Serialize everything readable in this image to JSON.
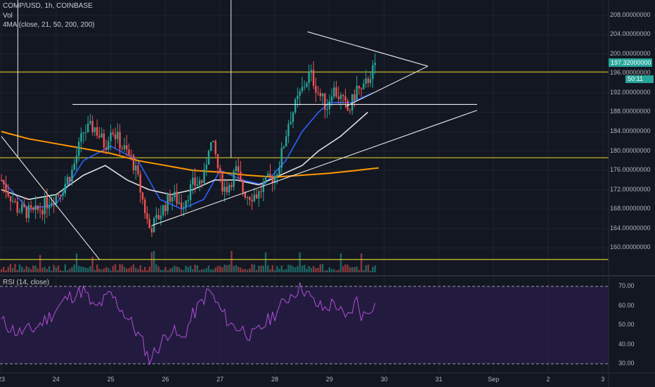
{
  "header": {
    "symbol_line": "COMP/USD, 1h, COINBASE",
    "vol_label": "Vol",
    "ma_label": "4MA (close, 21, 50, 200, 200)",
    "rsi_label": "RSI (14, close)"
  },
  "chart_data": {
    "type": "candlestick",
    "symbol": "COMP/USD",
    "interval": "1h",
    "exchange": "COINBASE",
    "price_axis": {
      "ticks": [
        "208.00000000",
        "204.00000000",
        "200.00000000",
        "196.00000000",
        "192.00000000",
        "188.00000000",
        "184.00000000",
        "180.00000000",
        "176.00000000",
        "172.00000000",
        "168.00000000",
        "164.00000000",
        "160.00000000"
      ],
      "ylim": [
        158,
        210
      ]
    },
    "last_price": "197.32000000",
    "countdown": "50:11",
    "x_axis": {
      "ticks": [
        "23",
        "24",
        "25",
        "26",
        "27",
        "28",
        "29",
        "30",
        "31",
        "Sep",
        "2",
        "3"
      ]
    },
    "rsi_axis": {
      "ticks": [
        "70.00",
        "60.00",
        "50.00",
        "40.00",
        "30.00"
      ],
      "ylim": [
        26,
        74
      ]
    },
    "close_path": [
      [
        23.0,
        174
      ],
      [
        23.3,
        168
      ],
      [
        23.6,
        167
      ],
      [
        23.9,
        170
      ],
      [
        24.1,
        172
      ],
      [
        24.3,
        176
      ],
      [
        24.5,
        184
      ],
      [
        24.7,
        185
      ],
      [
        24.9,
        181
      ],
      [
        25.0,
        185
      ],
      [
        25.2,
        181
      ],
      [
        25.4,
        178
      ],
      [
        25.5,
        174
      ],
      [
        25.6,
        169
      ],
      [
        25.7,
        164
      ],
      [
        25.8,
        165
      ],
      [
        25.95,
        168
      ],
      [
        26.1,
        171
      ],
      [
        26.3,
        169
      ],
      [
        26.5,
        173
      ],
      [
        26.7,
        174
      ],
      [
        26.8,
        182
      ],
      [
        26.9,
        180
      ],
      [
        27.0,
        174
      ],
      [
        27.1,
        172
      ],
      [
        27.2,
        174
      ],
      [
        27.3,
        176
      ],
      [
        27.4,
        172
      ],
      [
        27.5,
        171
      ],
      [
        27.7,
        171
      ],
      [
        27.8,
        173
      ],
      [
        28.0,
        175
      ],
      [
        28.1,
        178
      ],
      [
        28.25,
        186
      ],
      [
        28.4,
        190
      ],
      [
        28.55,
        194
      ],
      [
        28.65,
        196
      ],
      [
        28.8,
        192
      ],
      [
        28.95,
        189
      ],
      [
        29.05,
        193
      ],
      [
        29.2,
        191
      ],
      [
        29.35,
        188
      ],
      [
        29.5,
        193
      ],
      [
        29.6,
        192
      ],
      [
        29.75,
        196
      ],
      [
        29.85,
        197.3
      ]
    ],
    "ma_lines": [
      {
        "color": "#2962ff",
        "points": [
          [
            23.0,
            174
          ],
          [
            23.5,
            168
          ],
          [
            24.0,
            169
          ],
          [
            24.5,
            178
          ],
          [
            25.0,
            181
          ],
          [
            25.5,
            178
          ],
          [
            25.9,
            170
          ],
          [
            26.3,
            168
          ],
          [
            26.7,
            170
          ],
          [
            27.0,
            176
          ],
          [
            27.4,
            174
          ],
          [
            27.8,
            173
          ],
          [
            28.2,
            178
          ],
          [
            28.5,
            184
          ],
          [
            28.8,
            188
          ],
          [
            29.0,
            190
          ],
          [
            29.4,
            190
          ],
          [
            29.8,
            192
          ]
        ]
      },
      {
        "color": "#e0e0e0",
        "points": [
          [
            23.0,
            172
          ],
          [
            23.5,
            170
          ],
          [
            24.0,
            171
          ],
          [
            24.5,
            175
          ],
          [
            24.9,
            177
          ],
          [
            25.3,
            174
          ],
          [
            25.7,
            172
          ],
          [
            26.1,
            171
          ],
          [
            26.5,
            172
          ],
          [
            26.9,
            174
          ],
          [
            27.3,
            174
          ],
          [
            27.7,
            173
          ],
          [
            28.1,
            175
          ],
          [
            28.5,
            177
          ],
          [
            28.8,
            180
          ],
          [
            29.2,
            183
          ],
          [
            29.7,
            188
          ]
        ]
      },
      {
        "color": "#ff9800",
        "points": [
          [
            23.0,
            184
          ],
          [
            23.5,
            182.5
          ],
          [
            24.0,
            181.5
          ],
          [
            24.5,
            180.5
          ],
          [
            25.0,
            179.5
          ],
          [
            25.5,
            178
          ],
          [
            26.0,
            177
          ],
          [
            26.5,
            176
          ],
          [
            27.0,
            175.6
          ],
          [
            27.5,
            175
          ],
          [
            28.0,
            174.6
          ],
          [
            28.5,
            175
          ],
          [
            29.0,
            175.4
          ],
          [
            29.5,
            176
          ],
          [
            29.9,
            176.5
          ]
        ]
      }
    ],
    "horizontal_levels": [
      196.3,
      178.6,
      157.6
    ],
    "trendlines": [
      {
        "from": [
          23.0,
          183
        ],
        "to": [
          24.8,
          157.5
        ]
      },
      {
        "from": [
          25.75,
          164.6
        ],
        "to": [
          31.7,
          188.4
        ]
      },
      {
        "from": [
          24.3,
          189.6
        ],
        "to": [
          31.7,
          189.6
        ]
      },
      {
        "from": [
          28.6,
          204.6
        ],
        "to": [
          30.8,
          197.5
        ]
      },
      {
        "from": [
          29.3,
          189.2
        ],
        "to": [
          30.8,
          197.5
        ]
      }
    ],
    "vertical_markers": [
      23.3,
      27.2
    ],
    "rsi_path": [
      [
        23.0,
        52
      ],
      [
        23.3,
        46
      ],
      [
        23.6,
        48
      ],
      [
        23.9,
        55
      ],
      [
        24.2,
        64
      ],
      [
        24.5,
        68
      ],
      [
        24.7,
        58
      ],
      [
        25.0,
        66
      ],
      [
        25.2,
        58
      ],
      [
        25.4,
        50
      ],
      [
        25.6,
        40
      ],
      [
        25.7,
        32
      ],
      [
        25.9,
        40
      ],
      [
        26.1,
        48
      ],
      [
        26.3,
        42
      ],
      [
        26.5,
        55
      ],
      [
        26.8,
        68
      ],
      [
        27.0,
        58
      ],
      [
        27.2,
        50
      ],
      [
        27.4,
        48
      ],
      [
        27.6,
        44
      ],
      [
        27.8,
        50
      ],
      [
        28.0,
        56
      ],
      [
        28.3,
        66
      ],
      [
        28.5,
        70
      ],
      [
        28.7,
        62
      ],
      [
        28.9,
        58
      ],
      [
        29.1,
        62
      ],
      [
        29.3,
        52
      ],
      [
        29.5,
        63
      ],
      [
        29.6,
        54
      ],
      [
        29.8,
        61
      ],
      [
        29.9,
        58
      ]
    ],
    "grid": true
  }
}
